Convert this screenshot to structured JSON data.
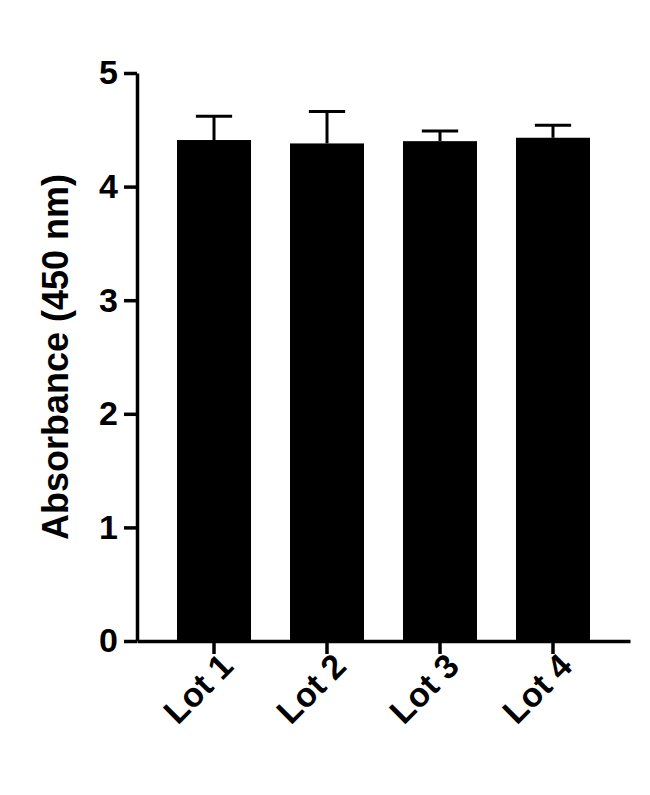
{
  "chart_data": {
    "type": "bar",
    "y_label": "Absorbance (450 nm)",
    "categories": [
      "Lot 1",
      "Lot 2",
      "Lot 3",
      "Lot 4"
    ],
    "values": [
      4.41,
      4.38,
      4.4,
      4.43
    ],
    "errors": [
      0.21,
      0.28,
      0.09,
      0.11
    ],
    "color": "#000000",
    "ylim": [
      0,
      5
    ],
    "yticks": [
      0,
      1,
      2,
      3,
      4,
      5
    ],
    "grid": false
  }
}
